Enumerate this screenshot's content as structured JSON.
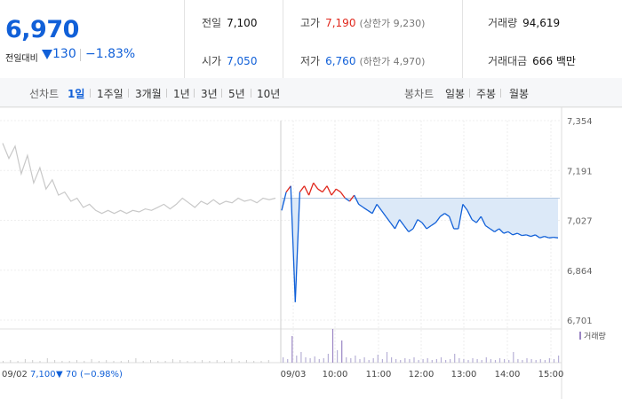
{
  "summary": {
    "price": "6,970",
    "change_label": "전일대비",
    "change_value": "130",
    "change_pct": "−1.83%"
  },
  "stats": {
    "prev_close_label": "전일",
    "prev_close": "7,100",
    "open_label": "시가",
    "open": "7,050",
    "high_label": "고가",
    "high": "7,190",
    "upper_limit": "(상한가 9,230)",
    "low_label": "저가",
    "low": "6,760",
    "lower_limit": "(하한가 4,970)",
    "volume_label": "거래량",
    "volume": "94,619",
    "value_label": "거래대금",
    "value": "666 백만"
  },
  "tabs": {
    "line_label": "선차트",
    "line_items": [
      "1일",
      "1주일",
      "3개월",
      "1년",
      "3년",
      "5년",
      "10년"
    ],
    "selected": "1일",
    "candle_label": "봉차트",
    "candle_items": [
      "일봉",
      "주봉",
      "월봉"
    ]
  },
  "colors": {
    "up": "#e0271c",
    "down": "#1160d8",
    "prev_day": "#c8c8c8",
    "fill": "#dce9f8",
    "volume": "#9b86c4"
  },
  "chart_data": {
    "type": "line",
    "y_ticks": [
      "7,354",
      "7,191",
      "7,027",
      "6,864",
      "6,701"
    ],
    "x_ticks": [
      "09/03",
      "10:00",
      "11:00",
      "12:00",
      "13:00",
      "14:00",
      "15:00"
    ],
    "ylim": [
      6701,
      7354
    ],
    "reference_price": 7100,
    "prev_day": {
      "label": "09/02",
      "close": "7,100",
      "change": "▼ 70",
      "change_pct": "(−0.98%)",
      "values": [
        7280,
        7230,
        7270,
        7180,
        7240,
        7150,
        7200,
        7130,
        7160,
        7110,
        7120,
        7090,
        7100,
        7070,
        7080,
        7060,
        7050,
        7060,
        7050,
        7060,
        7050,
        7060,
        7055,
        7065,
        7060,
        7070,
        7080,
        7065,
        7080,
        7100,
        7085,
        7070,
        7090,
        7080,
        7095,
        7080,
        7090,
        7085,
        7100,
        7090,
        7095,
        7085,
        7100,
        7095,
        7100
      ]
    },
    "today": {
      "values": [
        7060,
        7120,
        7140,
        6760,
        7120,
        7140,
        7110,
        7150,
        7130,
        7120,
        7140,
        7110,
        7130,
        7120,
        7100,
        7090,
        7110,
        7080,
        7070,
        7060,
        7050,
        7080,
        7060,
        7040,
        7020,
        7000,
        7030,
        7010,
        6990,
        7000,
        7030,
        7020,
        7000,
        7010,
        7020,
        7040,
        7050,
        7040,
        7000,
        7000,
        7080,
        7060,
        7030,
        7020,
        7040,
        7010,
        7000,
        6990,
        7000,
        6985,
        6990,
        6980,
        6985,
        6978,
        6980,
        6975,
        6980,
        6970,
        6975,
        6970,
        6972,
        6970
      ]
    },
    "volume_label": "거래량"
  }
}
